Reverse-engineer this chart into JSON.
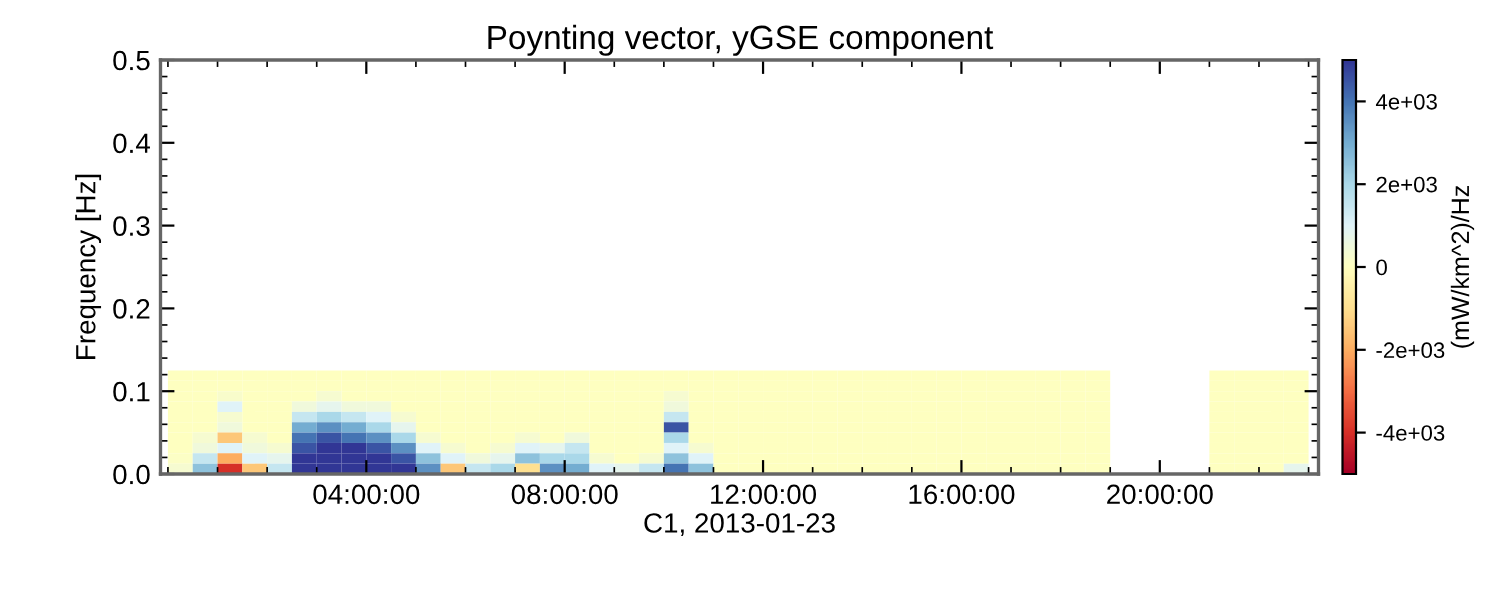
{
  "chart_data": {
    "type": "heatmap",
    "title": "Poynting vector, yGSE component",
    "xlabel": "C1, 2013-01-23",
    "ylabel": "Frequency [Hz]",
    "clabel": "(mW/km^2)/Hz",
    "x": [
      0.25,
      0.75,
      1.25,
      1.75,
      2.25,
      2.75,
      3.25,
      3.75,
      4.25,
      4.75,
      5.25,
      5.75,
      6.25,
      6.75,
      7.25,
      7.75,
      8.25,
      8.75,
      9.25,
      9.75,
      10.25,
      10.75,
      11.25,
      11.75,
      12.25,
      12.75,
      13.25,
      13.75,
      14.25,
      14.75,
      15.25,
      15.75,
      16.25,
      16.75,
      17.25,
      17.75,
      18.25,
      18.75,
      19.25,
      19.75,
      20.25,
      20.75,
      21.25,
      21.75,
      22.25,
      22.75
    ],
    "y": [
      0.11875,
      0.10625,
      0.09375,
      0.08125,
      0.06875,
      0.05625,
      0.04375,
      0.03125,
      0.01875,
      0.00625
    ],
    "cells": [
      [
        0,
        0,
        0,
        0,
        0,
        0,
        0,
        0,
        0,
        0,
        0,
        0,
        0,
        0,
        0,
        0,
        0,
        0,
        0,
        0,
        0,
        0,
        0,
        0,
        0,
        0,
        0,
        0,
        0,
        0,
        0,
        0,
        0,
        0,
        0,
        0,
        0,
        0,
        null,
        null,
        null,
        null,
        0,
        0,
        0,
        0
      ],
      [
        0,
        0,
        0,
        0,
        0,
        0,
        0,
        0,
        0,
        0,
        0,
        0,
        0,
        0,
        0,
        0,
        0,
        0,
        0,
        0,
        0,
        0,
        0,
        0,
        0,
        0,
        0,
        0,
        0,
        0,
        0,
        0,
        0,
        0,
        0,
        0,
        0,
        0,
        null,
        null,
        null,
        null,
        0,
        0,
        0,
        0
      ],
      [
        0,
        0,
        200,
        0,
        0,
        0,
        300,
        0,
        0,
        0,
        0,
        0,
        0,
        0,
        0,
        0,
        0,
        0,
        0,
        0,
        300,
        0,
        0,
        0,
        0,
        0,
        0,
        0,
        0,
        0,
        0,
        0,
        0,
        0,
        0,
        0,
        0,
        0,
        null,
        null,
        null,
        null,
        0,
        0,
        0,
        0
      ],
      [
        0,
        0,
        1000,
        0,
        0,
        500,
        800,
        500,
        500,
        0,
        0,
        0,
        0,
        0,
        0,
        0,
        0,
        0,
        0,
        0,
        500,
        0,
        0,
        0,
        0,
        0,
        0,
        0,
        0,
        0,
        0,
        0,
        0,
        0,
        0,
        0,
        0,
        0,
        null,
        null,
        null,
        null,
        0,
        0,
        0,
        0
      ],
      [
        0,
        0,
        300,
        0,
        0,
        1500,
        2000,
        1500,
        1000,
        300,
        0,
        0,
        0,
        0,
        0,
        0,
        0,
        0,
        0,
        0,
        1500,
        0,
        0,
        0,
        0,
        0,
        0,
        0,
        0,
        0,
        0,
        0,
        0,
        0,
        0,
        0,
        0,
        0,
        null,
        null,
        null,
        null,
        0,
        0,
        0,
        0
      ],
      [
        0,
        0,
        500,
        0,
        0,
        3000,
        3500,
        3000,
        2000,
        800,
        0,
        0,
        0,
        0,
        0,
        0,
        0,
        0,
        0,
        0,
        4500,
        0,
        0,
        0,
        0,
        0,
        0,
        0,
        0,
        0,
        0,
        0,
        0,
        0,
        0,
        0,
        0,
        0,
        null,
        null,
        null,
        null,
        0,
        0,
        0,
        0
      ],
      [
        0,
        300,
        -1500,
        300,
        0,
        4000,
        4500,
        4000,
        3500,
        2000,
        300,
        0,
        0,
        0,
        300,
        0,
        500,
        0,
        0,
        0,
        2000,
        0,
        0,
        0,
        0,
        0,
        0,
        0,
        0,
        0,
        0,
        0,
        0,
        0,
        0,
        0,
        0,
        0,
        null,
        null,
        null,
        null,
        0,
        0,
        0,
        0
      ],
      [
        0,
        500,
        1000,
        500,
        300,
        4500,
        5000,
        5000,
        4500,
        3500,
        1000,
        300,
        0,
        300,
        1000,
        800,
        1500,
        0,
        0,
        0,
        1000,
        300,
        0,
        0,
        0,
        0,
        0,
        0,
        0,
        0,
        0,
        0,
        0,
        0,
        0,
        0,
        0,
        0,
        null,
        null,
        null,
        null,
        0,
        0,
        0,
        0
      ],
      [
        100,
        1500,
        -2000,
        1000,
        800,
        5000,
        5000,
        5000,
        5000,
        4500,
        2500,
        1000,
        500,
        800,
        2500,
        2000,
        2000,
        300,
        0,
        300,
        2500,
        1000,
        0,
        0,
        0,
        0,
        0,
        0,
        0,
        0,
        0,
        0,
        0,
        0,
        0,
        0,
        0,
        0,
        null,
        null,
        null,
        null,
        0,
        0,
        0,
        0
      ],
      [
        300,
        2500,
        -4000,
        -1500,
        1500,
        5000,
        5000,
        5000,
        5000,
        5000,
        3500,
        -1500,
        1500,
        2000,
        -1000,
        3500,
        3000,
        1000,
        800,
        1500,
        4000,
        2500,
        0,
        0,
        0,
        0,
        0,
        0,
        0,
        0,
        0,
        0,
        0,
        0,
        0,
        0,
        0,
        0,
        null,
        null,
        null,
        null,
        0,
        0,
        0,
        800
      ]
    ],
    "clim": [
      -5000,
      5000
    ],
    "cticks": [
      {
        "value": -4000,
        "label": "-4e+03"
      },
      {
        "value": -2000,
        "label": "-2e+03"
      },
      0,
      {
        "value": 2000,
        "label": "2e+03"
      },
      {
        "value": 4000,
        "label": "4e+03"
      }
    ],
    "xlim": [
      -0.15,
      23.2
    ],
    "xticks": [
      {
        "value": 0,
        "label": null
      },
      {
        "value": 1,
        "label": null
      },
      {
        "value": 2,
        "label": null
      },
      {
        "value": 3,
        "label": null
      },
      {
        "value": 4,
        "label": "04:00:00"
      },
      {
        "value": 5,
        "label": null
      },
      {
        "value": 6,
        "label": null
      },
      {
        "value": 7,
        "label": null
      },
      {
        "value": 8,
        "label": "08:00:00"
      },
      {
        "value": 9,
        "label": null
      },
      {
        "value": 10,
        "label": null
      },
      {
        "value": 11,
        "label": null
      },
      {
        "value": 12,
        "label": "12:00:00"
      },
      {
        "value": 13,
        "label": null
      },
      {
        "value": 14,
        "label": null
      },
      {
        "value": 15,
        "label": null
      },
      {
        "value": 16,
        "label": "16:00:00"
      },
      {
        "value": 17,
        "label": null
      },
      {
        "value": 18,
        "label": null
      },
      {
        "value": 19,
        "label": null
      },
      {
        "value": 20,
        "label": "20:00:00"
      },
      {
        "value": 21,
        "label": null
      },
      {
        "value": 22,
        "label": null
      },
      {
        "value": 23,
        "label": null
      }
    ],
    "ylim": [
      0,
      0.5
    ],
    "yticks": [
      {
        "value": 0,
        "label": "0.0"
      },
      {
        "value": 0.1,
        "label": "0.1"
      },
      {
        "value": 0.2,
        "label": "0.2"
      },
      {
        "value": 0.3,
        "label": "0.3"
      },
      {
        "value": 0.4,
        "label": "0.4"
      },
      {
        "value": 0.5,
        "label": "0.5"
      },
      {
        "value": 0.02,
        "label": null
      },
      {
        "value": 0.04,
        "label": null
      },
      {
        "value": 0.06,
        "label": null
      },
      {
        "value": 0.08,
        "label": null
      },
      {
        "value": 0.12,
        "label": null
      },
      {
        "value": 0.14,
        "label": null
      },
      {
        "value": 0.16,
        "label": null
      },
      {
        "value": 0.18,
        "label": null
      },
      {
        "value": 0.22,
        "label": null
      },
      {
        "value": 0.24,
        "label": null
      },
      {
        "value": 0.26,
        "label": null
      },
      {
        "value": 0.28,
        "label": null
      },
      {
        "value": 0.32,
        "label": null
      },
      {
        "value": 0.34,
        "label": null
      },
      {
        "value": 0.36,
        "label": null
      },
      {
        "value": 0.38,
        "label": null
      },
      {
        "value": 0.42,
        "label": null
      },
      {
        "value": 0.44,
        "label": null
      },
      {
        "value": 0.46,
        "label": null
      },
      {
        "value": 0.48,
        "label": null
      }
    ]
  }
}
